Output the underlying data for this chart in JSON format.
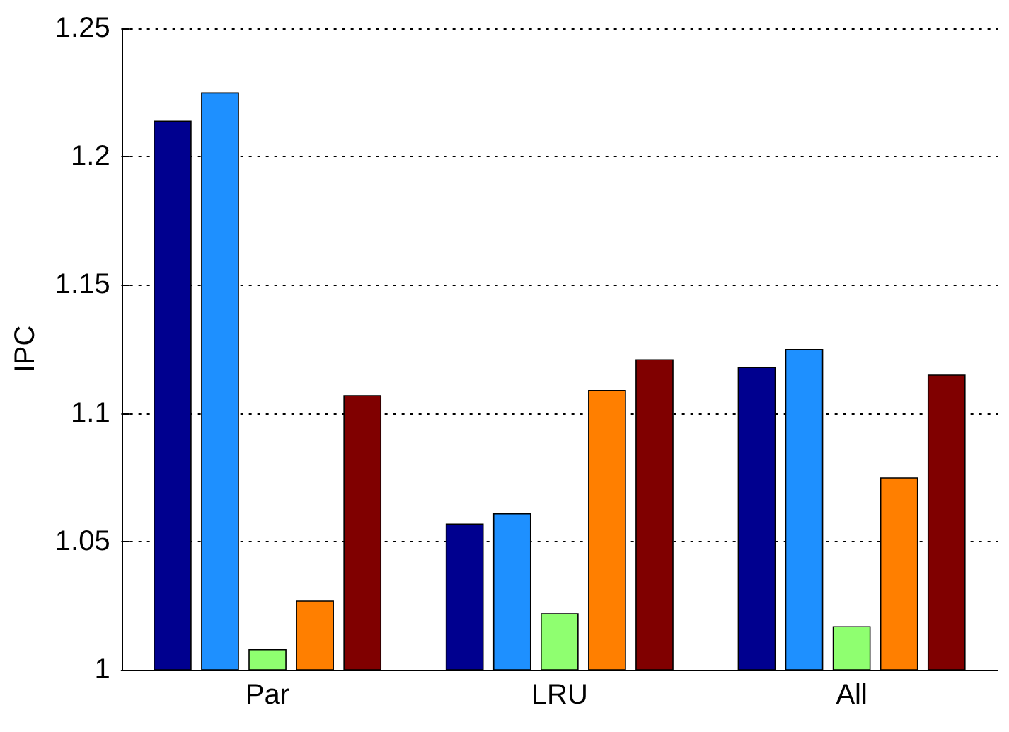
{
  "chart_data": {
    "type": "bar",
    "ylabel": "IPC",
    "categories": [
      "Par",
      "LRU",
      "All"
    ],
    "series": [
      {
        "color": "#00008f",
        "values": [
          1.214,
          1.057,
          1.118
        ]
      },
      {
        "color": "#1e90ff",
        "values": [
          1.225,
          1.061,
          1.125
        ]
      },
      {
        "color": "#8fff70",
        "values": [
          1.008,
          1.022,
          1.017
        ]
      },
      {
        "color": "#ff7f00",
        "values": [
          1.027,
          1.109,
          1.075
        ]
      },
      {
        "color": "#800000",
        "values": [
          1.107,
          1.121,
          1.115
        ]
      }
    ],
    "ylim": [
      1,
      1.25
    ],
    "yticks": [
      1,
      1.05,
      1.1,
      1.15,
      1.2,
      1.25
    ],
    "grid": "y"
  }
}
